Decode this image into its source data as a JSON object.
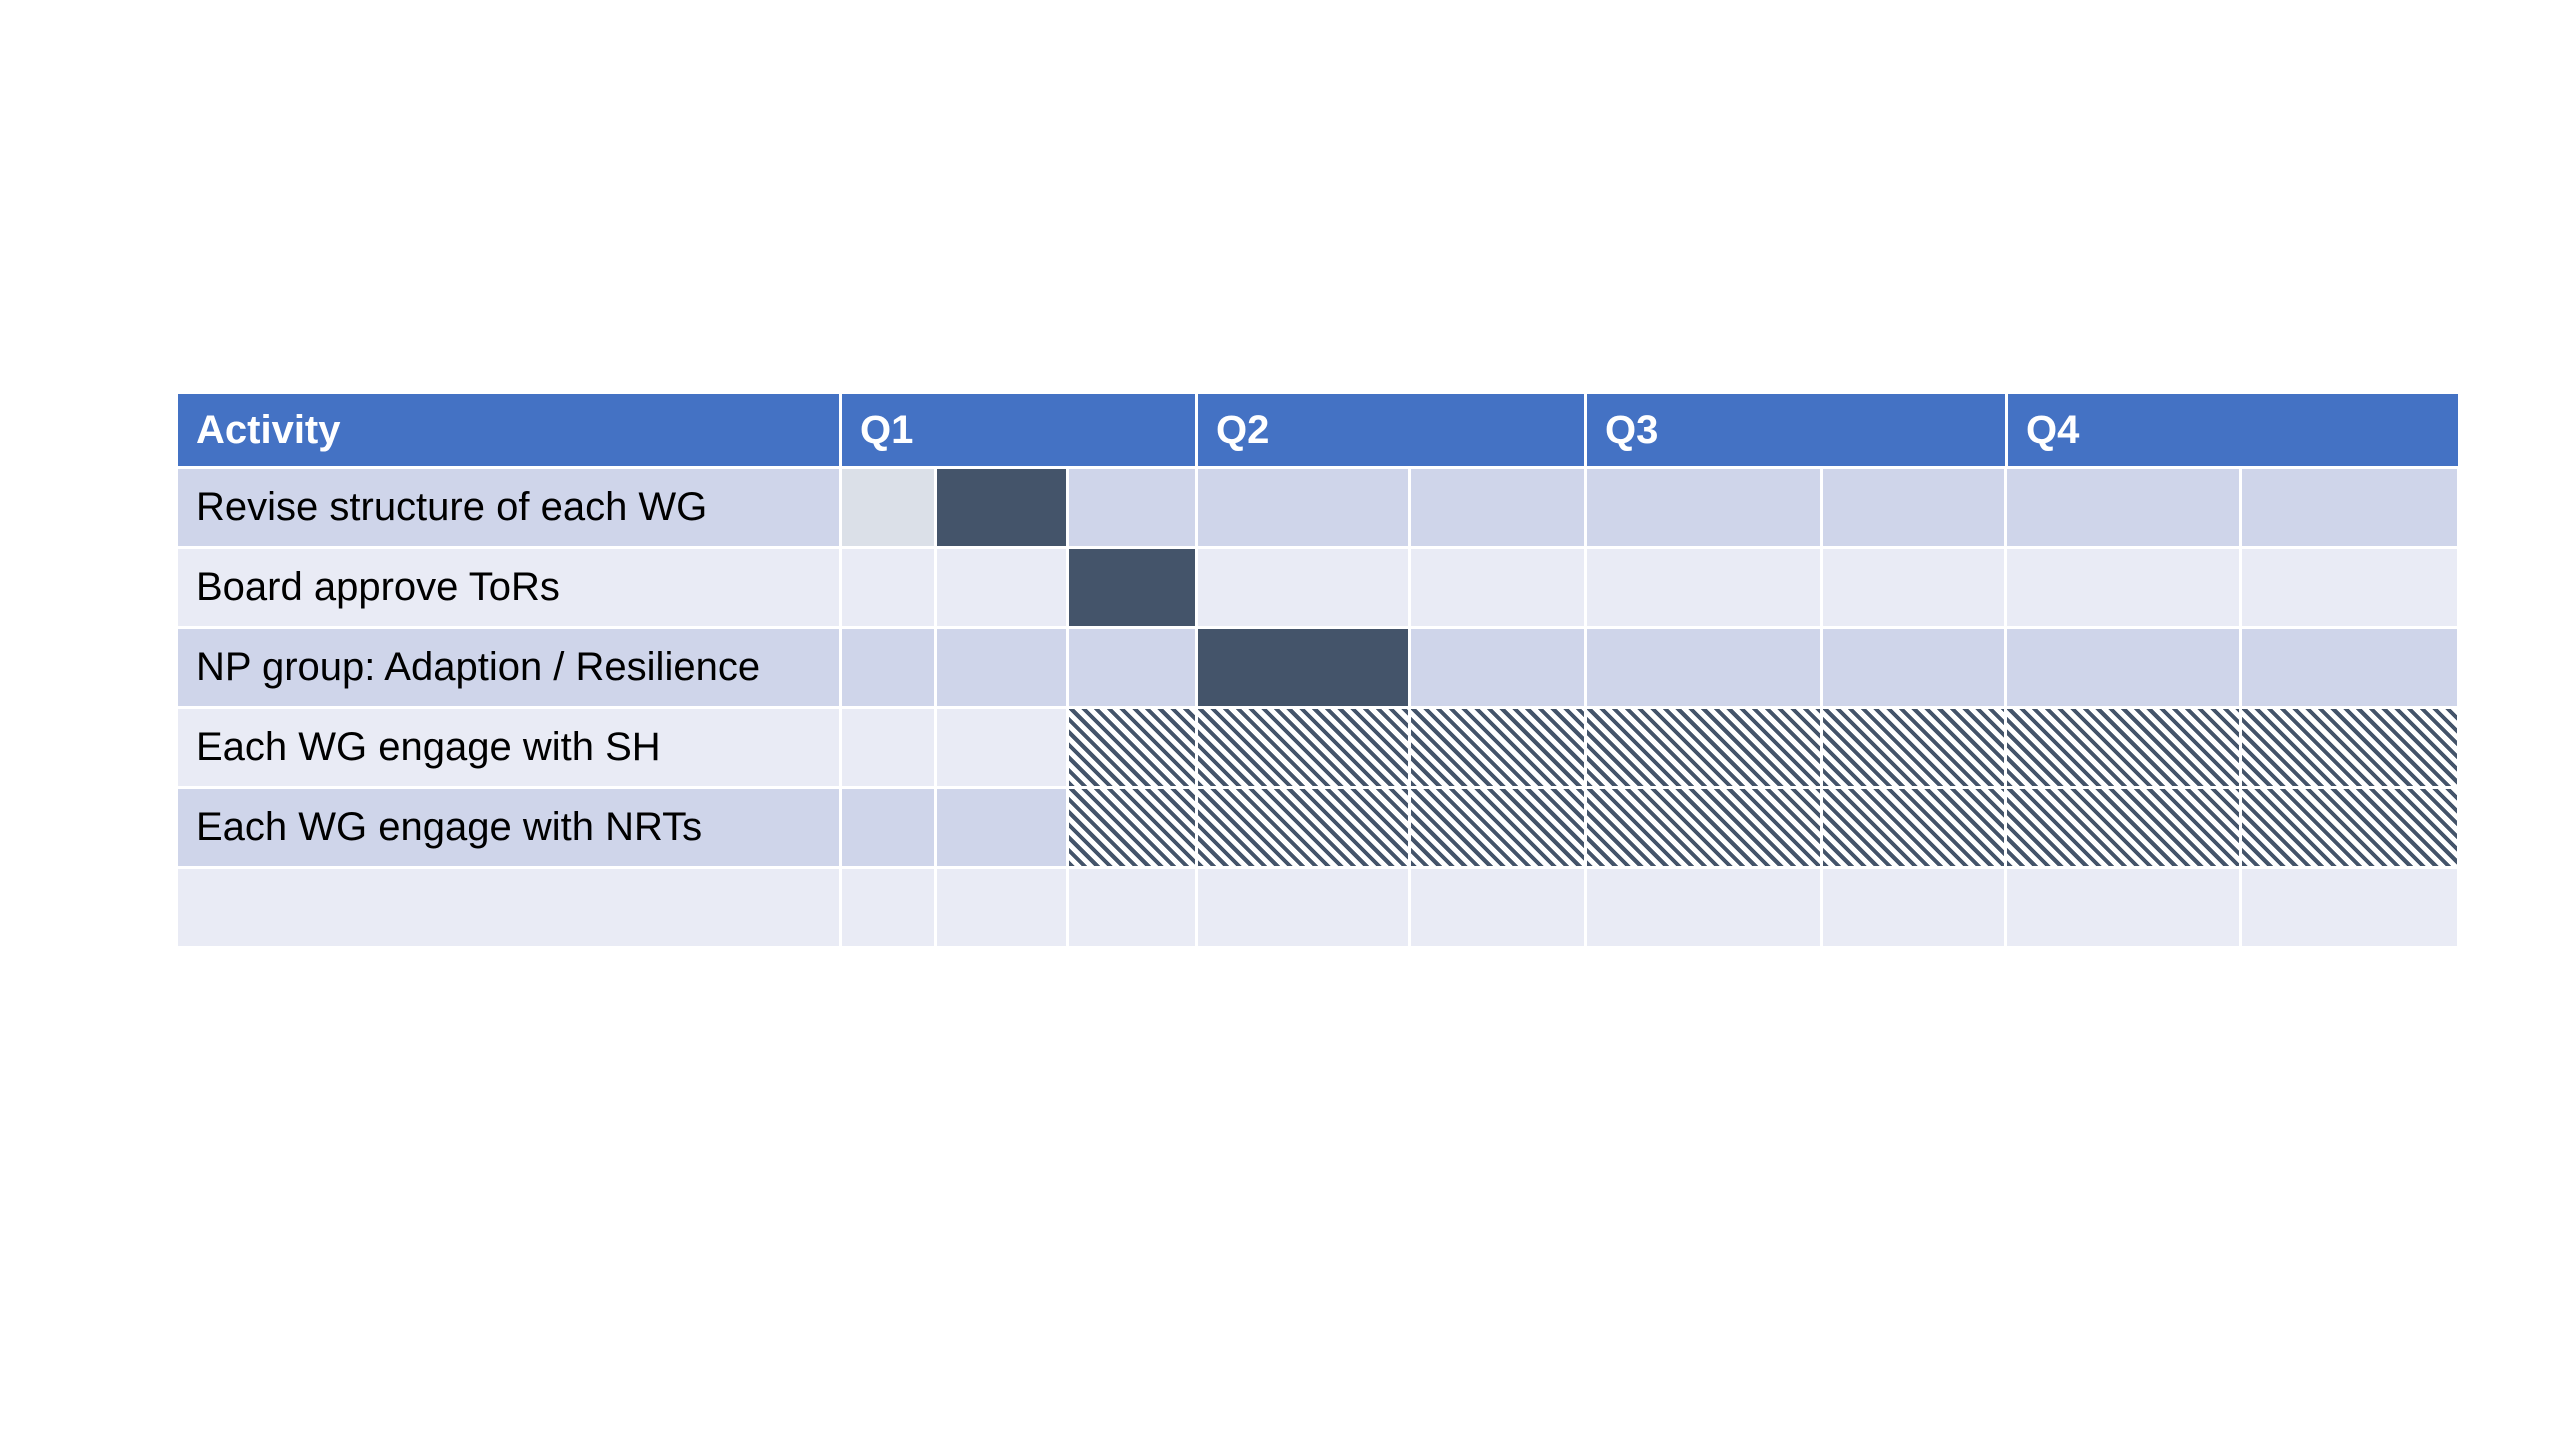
{
  "table": {
    "headers": [
      "Activity",
      "Q1",
      "Q2",
      "Q3",
      "Q4"
    ],
    "period_columns": 9,
    "rows": [
      {
        "activity": "Revise structure of each WG",
        "cells": [
          "light",
          "bar",
          "",
          "",
          "",
          "",
          "",
          "",
          ""
        ]
      },
      {
        "activity": "Board approve ToRs",
        "cells": [
          "",
          "",
          "bar",
          "",
          "",
          "",
          "",
          "",
          ""
        ]
      },
      {
        "activity": "NP group: Adaption / Resilience",
        "cells": [
          "",
          "",
          "",
          "bar",
          "",
          "",
          "",
          "",
          ""
        ]
      },
      {
        "activity": "Each WG engage with SH",
        "cells": [
          "",
          "",
          "hatch",
          "hatch",
          "hatch",
          "hatch",
          "hatch",
          "hatch",
          "hatch"
        ]
      },
      {
        "activity": "Each WG engage with NRTs",
        "cells": [
          "",
          "",
          "hatch",
          "hatch",
          "hatch",
          "hatch",
          "hatch",
          "hatch",
          "hatch"
        ]
      },
      {
        "activity": "",
        "cells": [
          "",
          "",
          "",
          "",
          "",
          "",
          "",
          "",
          ""
        ]
      }
    ]
  },
  "colors": {
    "header": "#4472c4",
    "row_dark": "#cfd5ea",
    "row_light": "#e9ebf5",
    "bar": "#44546a",
    "hatch": "#44546a"
  }
}
